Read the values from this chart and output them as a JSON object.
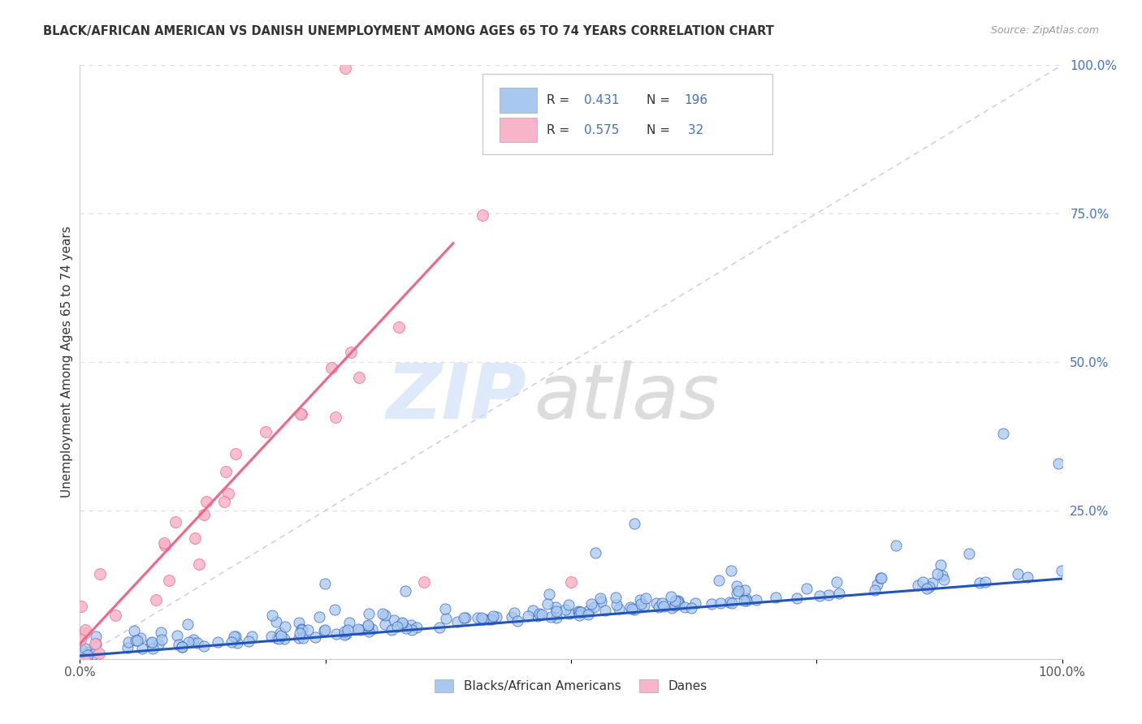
{
  "title": "BLACK/AFRICAN AMERICAN VS DANISH UNEMPLOYMENT AMONG AGES 65 TO 74 YEARS CORRELATION CHART",
  "source": "Source: ZipAtlas.com",
  "ylabel": "Unemployment Among Ages 65 to 74 years",
  "watermark_zip": "ZIP",
  "watermark_atlas": "atlas",
  "legend_blue_R": "0.431",
  "legend_blue_N": "196",
  "legend_pink_R": "0.575",
  "legend_pink_N": "32",
  "legend_label_blue": "Blacks/African Americans",
  "legend_label_pink": "Danes",
  "blue_color": "#A8C8F0",
  "pink_color": "#F8B4C8",
  "trend_blue_color": "#2255BB",
  "trend_pink_color": "#EE6688",
  "diagonal_color": "#CCCCCC",
  "background_color": "#FFFFFF",
  "grid_color": "#DDDDDD",
  "right_tick_color": "#4472C4",
  "title_color": "#333333",
  "source_color": "#999999"
}
